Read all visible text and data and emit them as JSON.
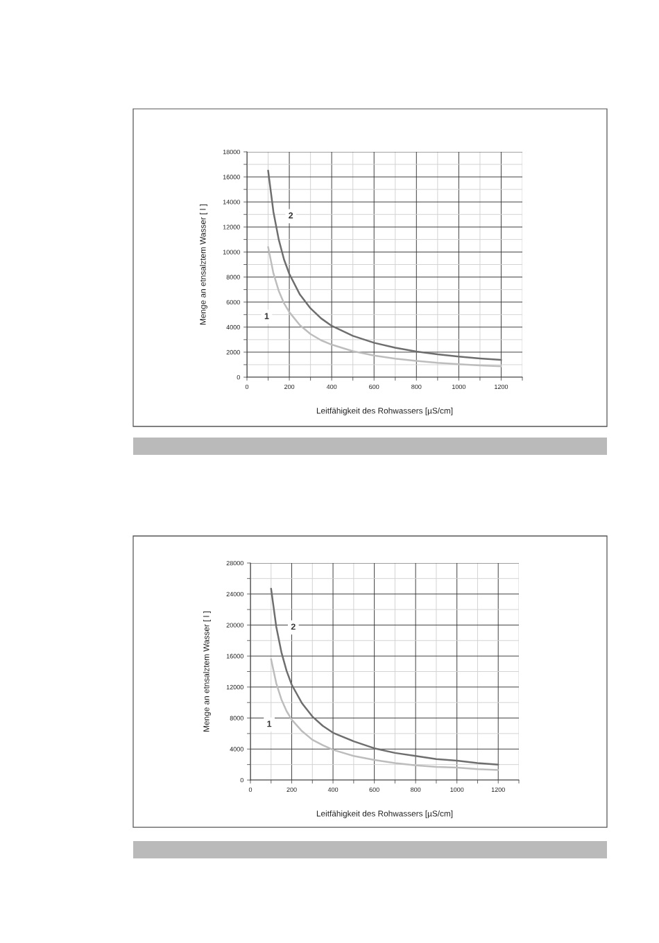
{
  "chart_data": [
    {
      "type": "line",
      "xlabel": "Leitfähigkeit des Rohwassers [µS/cm]",
      "ylabel": "Menge an etnsalztem Wasser [ l ]",
      "x": [
        100,
        125,
        150,
        175,
        200,
        250,
        300,
        350,
        400,
        500,
        600,
        700,
        800,
        900,
        1000,
        1100,
        1200
      ],
      "series": [
        {
          "name": "1",
          "color": "#bdbdbd",
          "values": [
            10400,
            8300,
            6900,
            5900,
            5200,
            4150,
            3450,
            2950,
            2600,
            2080,
            1730,
            1480,
            1300,
            1150,
            1040,
            940,
            870
          ]
        },
        {
          "name": "2",
          "color": "#6e6e6e",
          "values": [
            16500,
            13200,
            11000,
            9400,
            8250,
            6600,
            5500,
            4700,
            4100,
            3300,
            2750,
            2350,
            2050,
            1830,
            1650,
            1500,
            1380
          ]
        }
      ],
      "xlim": [
        0,
        1300
      ],
      "xticks": [
        0,
        {
          "value": 100,
          "label": null
        },
        200,
        {
          "value": 300,
          "label": null
        },
        400,
        {
          "value": 500,
          "label": null
        },
        600,
        {
          "value": 700,
          "label": null
        },
        800,
        {
          "value": 900,
          "label": null
        },
        1000,
        {
          "value": 1100,
          "label": null
        },
        1200,
        {
          "value": 1300,
          "label": null
        }
      ],
      "ylim": [
        0,
        18000
      ],
      "yticks": [
        0,
        {
          "value": 1000,
          "label": null
        },
        2000,
        {
          "value": 3000,
          "label": null
        },
        4000,
        {
          "value": 5000,
          "label": null
        },
        6000,
        {
          "value": 7000,
          "label": null
        },
        8000,
        {
          "value": 9000,
          "label": null
        },
        10000,
        {
          "value": 11000,
          "label": null
        },
        12000,
        {
          "value": 13000,
          "label": null
        },
        14000,
        {
          "value": 15000,
          "label": null
        },
        16000,
        {
          "value": 17000,
          "label": null
        },
        18000
      ],
      "grid": true
    },
    {
      "type": "line",
      "xlabel": "Leitfähigkeit des Rohwassers [µS/cm]",
      "ylabel": "Menge an etnsalztem Wasser [ l ]",
      "x": [
        100,
        125,
        150,
        175,
        200,
        250,
        300,
        350,
        400,
        500,
        600,
        700,
        800,
        900,
        1000,
        1100,
        1200
      ],
      "series": [
        {
          "name": "1",
          "color": "#bdbdbd",
          "values": [
            15600,
            12500,
            10400,
            8900,
            7800,
            6300,
            5200,
            4500,
            3900,
            3100,
            2600,
            2200,
            1900,
            1700,
            1600,
            1400,
            1300
          ]
        },
        {
          "name": "2",
          "color": "#6e6e6e",
          "values": [
            24700,
            19800,
            16500,
            14100,
            12300,
            9900,
            8200,
            7000,
            6100,
            5000,
            4100,
            3500,
            3100,
            2700,
            2500,
            2200,
            2000
          ]
        }
      ],
      "xlim": [
        0,
        1300
      ],
      "xticks": [
        0,
        {
          "value": 100,
          "label": null
        },
        200,
        {
          "value": 300,
          "label": null
        },
        400,
        {
          "value": 500,
          "label": null
        },
        600,
        {
          "value": 700,
          "label": null
        },
        800,
        {
          "value": 900,
          "label": null
        },
        1000,
        {
          "value": 1100,
          "label": null
        },
        1200,
        {
          "value": 1300,
          "label": null
        }
      ],
      "ylim": [
        0,
        28000
      ],
      "yticks": [
        0,
        {
          "value": 2000,
          "label": null
        },
        4000,
        {
          "value": 6000,
          "label": null
        },
        8000,
        {
          "value": 10000,
          "label": null
        },
        12000,
        {
          "value": 14000,
          "label": null
        },
        16000,
        {
          "value": 18000,
          "label": null
        },
        20000,
        {
          "value": 22000,
          "label": null
        },
        24000,
        {
          "value": 26000,
          "label": null
        },
        28000
      ],
      "grid": true
    }
  ]
}
